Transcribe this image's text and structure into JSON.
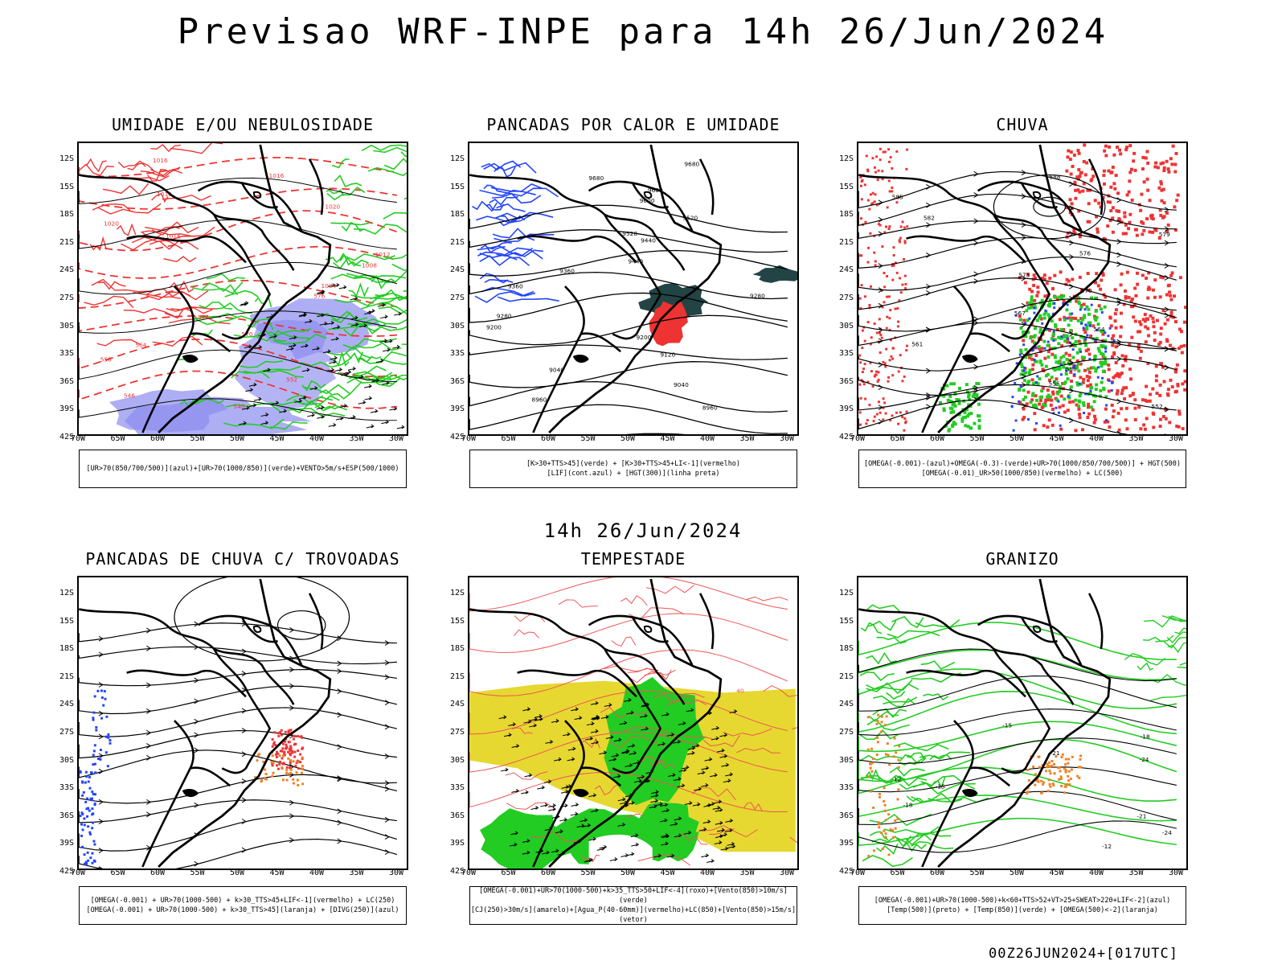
{
  "title": "Previsao WRF-INPE  para 14h 26/Jun/2024",
  "mid_title": "14h 26/Jun/2024",
  "footer": "00Z26JUN2024+[017UTC]",
  "colors": {
    "red": "#ee3333",
    "green": "#22cc22",
    "blue": "#2244ff",
    "purple": "#8c8cf0",
    "yellow": "#e6d830",
    "orange": "#f08020",
    "dark": "#224444",
    "black": "#000000"
  },
  "chart_data": {
    "type": "map-grid",
    "lat_ticks": [
      "12S",
      "15S",
      "18S",
      "21S",
      "24S",
      "27S",
      "30S",
      "33S",
      "36S",
      "39S",
      "42S"
    ],
    "lon_ticks": [
      "70W",
      "65W",
      "60W",
      "55W",
      "50W",
      "45W",
      "40W",
      "35W",
      "30W"
    ],
    "panels": [
      {
        "id": "umidade",
        "title": "UMIDADE E/OU NEBULOSIDADE",
        "legend": [
          "[UR>70(850/700/500)](azul)+[UR>70(1000/850)](verde)+VENTO>5m/s+ESP(500/1000)"
        ],
        "contour_labels": [
          "1016",
          "1016",
          "1016",
          "1020",
          "1020",
          "1016",
          "1012",
          "1008",
          "1004",
          "576",
          "576",
          "570",
          "564",
          "558",
          "552",
          "546",
          "540"
        ]
      },
      {
        "id": "pancadas",
        "title": "PANCADAS POR CALOR E UMIDADE",
        "legend": [
          "[K>30+TTS>45](verde) + [K>30+TTS>45+LI<-1](vermelho)",
          "[LIF](cont.azul) + [HGT(300)](linha preta)"
        ],
        "contour_labels": [
          "9680",
          "9680",
          "9600",
          "9600",
          "9520",
          "9520",
          "9440",
          "9440",
          "9360",
          "9360",
          "9280",
          "9280",
          "9200",
          "9200",
          "9120",
          "9040",
          "9040",
          "8960",
          "8960"
        ]
      },
      {
        "id": "chuva",
        "title": "CHUVA",
        "legend": [
          "[OMEGA(-0.001)-(azul)+OMEGA(-0.3)-(verde)+UR>70(1000/850/700/500)] + HGT(500)",
          "[OMEGA(-0.01)_UR>50(1000/850)(vermelho) + LC(500)"
        ],
        "contour_labels": [
          "588",
          "585",
          "582",
          "579",
          "576",
          "573",
          "570",
          "567",
          "564",
          "561",
          "558",
          "555",
          "552"
        ]
      },
      {
        "id": "trovoadas",
        "title": "PANCADAS DE CHUVA C/ TROVOADAS",
        "legend": [
          "[OMEGA(-0.001) + UR>70(1000-500) + k>30_TTS>45+LIF<-1](vermelho) + LC(250)",
          "[OMEGA(-0.001) + UR>70(1000-500) + k>30_TTS>45](laranja) + [DIVG(250)](azul)"
        ]
      },
      {
        "id": "tempestade",
        "title": "TEMPESTADE",
        "legend": [
          "[OMEGA(-0.001)+UR>70(1000-500)+k>35_TTS>50+LIF<-4](roxo)+[Vento(850)>10m/s](verde)",
          "[CJ(250)>30m/s](amarelo)+[Agua_P(40-60mm)](vermelho)+LC(850)+[Vento(850)>15m/s](vetor)"
        ],
        "contour_labels": [
          "40"
        ]
      },
      {
        "id": "granizo",
        "title": "GRANIZO",
        "legend": [
          "[OMEGA(-0.001)+UR>70(1000-500)+k<60+TTS>52+VT>25+SWEAT>220+LIF<-2](azul)",
          "[Temp(500)](preto) + [Temp(850)](verde) + [OMEGA(500)<-2](laranja)"
        ],
        "contour_labels": [
          "-15",
          "-18",
          "-21",
          "-24",
          "-12",
          "-15",
          "-18",
          "-21",
          "-24",
          "-12"
        ]
      }
    ]
  }
}
